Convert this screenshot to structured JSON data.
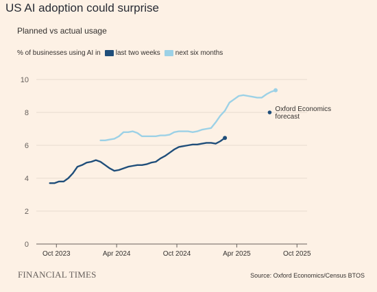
{
  "header": {
    "title": "US AI adoption could surprise",
    "subtitle": "Planned vs actual usage"
  },
  "footer": {
    "logo": "FINANCIAL TIMES",
    "source": "Source: Oxford Economics/Census BTOS"
  },
  "colors": {
    "background": "#fdf1e5",
    "dark_blue": "#1f4e7a",
    "light_blue": "#9cd1e6",
    "grid": "#e8dcd0",
    "axis_text": "#66605c"
  },
  "chart_data": {
    "type": "line",
    "title": "US AI adoption could surprise",
    "subtitle": "Planned vs actual usage",
    "ylabel": "% of businesses using AI in",
    "xlabel": "",
    "ylim": [
      0,
      10
    ],
    "y_ticks": [
      0,
      2,
      4,
      6,
      8,
      10
    ],
    "x_ticks": [
      "2023-10-01",
      "2024-04-01",
      "2024-10-01",
      "2025-04-01",
      "2025-10-01"
    ],
    "x_tick_labels": [
      "Oct 2023",
      "Apr 2024",
      "Oct 2024",
      "Apr 2025",
      "Oct 2025"
    ],
    "xlim": [
      "2023-08-01",
      "2025-10-15"
    ],
    "grid": true,
    "legend_placement": "top-left",
    "legend_prefix": "% of businesses using AI in",
    "series": [
      {
        "name": "last two weeks",
        "color": "#1f4e7a",
        "end_marker": true,
        "points": [
          [
            "2023-09-11",
            3.7
          ],
          [
            "2023-09-25",
            3.7
          ],
          [
            "2023-10-09",
            3.8
          ],
          [
            "2023-10-23",
            3.8
          ],
          [
            "2023-11-06",
            4.0
          ],
          [
            "2023-11-20",
            4.3
          ],
          [
            "2023-12-04",
            4.7
          ],
          [
            "2023-12-18",
            4.8
          ],
          [
            "2024-01-01",
            4.95
          ],
          [
            "2024-01-15",
            5.0
          ],
          [
            "2024-01-29",
            5.1
          ],
          [
            "2024-02-12",
            5.0
          ],
          [
            "2024-02-26",
            4.8
          ],
          [
            "2024-03-11",
            4.6
          ],
          [
            "2024-03-25",
            4.45
          ],
          [
            "2024-04-08",
            4.5
          ],
          [
            "2024-04-22",
            4.6
          ],
          [
            "2024-05-06",
            4.7
          ],
          [
            "2024-05-20",
            4.75
          ],
          [
            "2024-06-03",
            4.8
          ],
          [
            "2024-06-17",
            4.8
          ],
          [
            "2024-07-01",
            4.85
          ],
          [
            "2024-07-15",
            4.95
          ],
          [
            "2024-07-29",
            5.0
          ],
          [
            "2024-08-12",
            5.2
          ],
          [
            "2024-08-26",
            5.35
          ],
          [
            "2024-09-09",
            5.55
          ],
          [
            "2024-09-23",
            5.75
          ],
          [
            "2024-10-07",
            5.9
          ],
          [
            "2024-10-21",
            5.95
          ],
          [
            "2024-11-04",
            6.0
          ],
          [
            "2024-11-18",
            6.05
          ],
          [
            "2024-12-02",
            6.05
          ],
          [
            "2024-12-16",
            6.1
          ],
          [
            "2024-12-30",
            6.15
          ],
          [
            "2025-01-13",
            6.15
          ],
          [
            "2025-01-27",
            6.1
          ],
          [
            "2025-02-10",
            6.25
          ],
          [
            "2025-02-24",
            6.45
          ]
        ]
      },
      {
        "name": "next six months",
        "color": "#9cd1e6",
        "end_marker": true,
        "points": [
          [
            "2024-02-12",
            6.3
          ],
          [
            "2024-02-26",
            6.3
          ],
          [
            "2024-03-11",
            6.35
          ],
          [
            "2024-03-25",
            6.4
          ],
          [
            "2024-04-08",
            6.55
          ],
          [
            "2024-04-22",
            6.8
          ],
          [
            "2024-05-06",
            6.8
          ],
          [
            "2024-05-20",
            6.85
          ],
          [
            "2024-06-03",
            6.75
          ],
          [
            "2024-06-17",
            6.55
          ],
          [
            "2024-07-01",
            6.55
          ],
          [
            "2024-07-15",
            6.55
          ],
          [
            "2024-07-29",
            6.55
          ],
          [
            "2024-08-12",
            6.6
          ],
          [
            "2024-08-26",
            6.6
          ],
          [
            "2024-09-09",
            6.65
          ],
          [
            "2024-09-23",
            6.8
          ],
          [
            "2024-10-07",
            6.85
          ],
          [
            "2024-10-21",
            6.85
          ],
          [
            "2024-11-04",
            6.85
          ],
          [
            "2024-11-18",
            6.8
          ],
          [
            "2024-12-02",
            6.85
          ],
          [
            "2024-12-16",
            6.95
          ],
          [
            "2024-12-30",
            7.0
          ],
          [
            "2025-01-13",
            7.05
          ],
          [
            "2025-01-27",
            7.4
          ],
          [
            "2025-02-10",
            7.8
          ],
          [
            "2025-02-24",
            8.1
          ],
          [
            "2025-03-10",
            8.6
          ],
          [
            "2025-03-24",
            8.8
          ],
          [
            "2025-04-07",
            9.0
          ],
          [
            "2025-04-21",
            9.05
          ],
          [
            "2025-05-05",
            9.0
          ],
          [
            "2025-05-19",
            8.95
          ],
          [
            "2025-06-02",
            8.9
          ],
          [
            "2025-06-16",
            8.9
          ],
          [
            "2025-06-30",
            9.1
          ],
          [
            "2025-07-14",
            9.25
          ],
          [
            "2025-07-28",
            9.35
          ]
        ]
      }
    ],
    "annotations": [
      {
        "text_lines": [
          "Oxford Economics",
          "forecast"
        ],
        "x": "2025-07-10",
        "y": 8.0,
        "color": "#1f4e7a"
      }
    ]
  }
}
